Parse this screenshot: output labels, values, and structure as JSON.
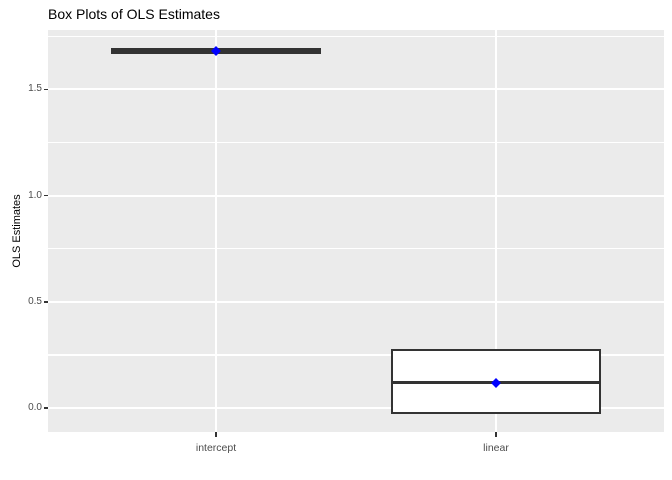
{
  "chart_data": {
    "type": "boxplot",
    "title": "Box Plots of OLS Estimates",
    "xlabel": "",
    "ylabel": "OLS Estimates",
    "categories": [
      "intercept",
      "linear"
    ],
    "series": [
      {
        "name": "intercept",
        "whisker_low": 1.665,
        "q1": 1.665,
        "median": 1.68,
        "q3": 1.695,
        "whisker_high": 1.695,
        "mean": 1.68
      },
      {
        "name": "linear",
        "whisker_low": -0.03,
        "q1": -0.03,
        "median": 0.12,
        "q3": 0.28,
        "whisker_high": 0.28,
        "mean": 0.12
      }
    ],
    "y_axis": {
      "ticks": [
        0.0,
        0.5,
        1.0,
        1.5
      ],
      "tick_labels": [
        "0.0",
        "0.5",
        "1.0",
        "1.5"
      ],
      "minor_ticks": [
        0.25,
        0.75,
        1.25,
        1.75
      ],
      "range": [
        -0.113,
        1.78
      ]
    },
    "legend": "none",
    "grid": true,
    "colors": {
      "panel_background": "#EBEBEB",
      "gridline": "#FFFFFF",
      "box_border": "#333333",
      "box_fill": "#FFFFFF",
      "median_line": "#333333",
      "mean_point": "#0000FF",
      "axis_text": "#4D4D4D",
      "tick_mark": "#333333",
      "title_text": "#000000"
    }
  }
}
